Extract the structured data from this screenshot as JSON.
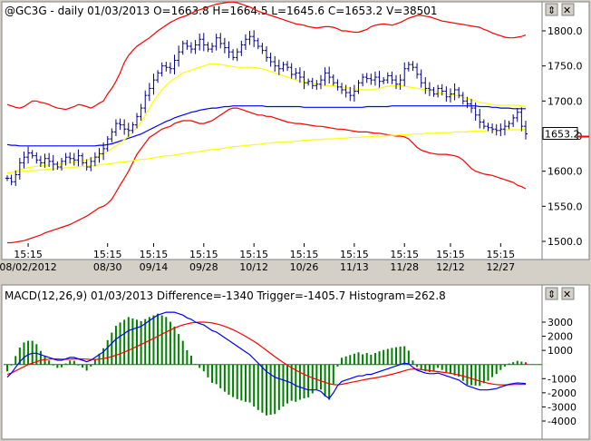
{
  "top_panel": {
    "title": "@GC3G - daily 01/03/2013 O=1663.8 H=1664.5 L=1645.6 C=1653.2 V=38501",
    "last_price": "1653.2",
    "buttons": {
      "restore": "⇕",
      "close": "✕"
    }
  },
  "bottom_panel": {
    "title": "MACD(12,26,9) 01/03/2013 Difference=-1340 Trigger=-1405.7 Histogram=262.8",
    "buttons": {
      "restore": "⇕",
      "close": "✕"
    }
  },
  "colors": {
    "background": "#ffffff",
    "price_bars": "#000080",
    "bollinger": "#ff0000",
    "ma_fast": "#ffff00",
    "ma_blue": "#0000ff",
    "ma_slow": "#ffff00",
    "macd_diff": "#0000ff",
    "macd_trigger": "#ff0000",
    "hist_pos": "#008000",
    "hist_last": "#ff0000"
  },
  "chart_data": [
    {
      "type": "line",
      "title": "@GC3G - daily 01/03/2013 O=1663.8 H=1664.5 L=1645.6 C=1653.2 V=38501",
      "y_ticks": [
        "1800.0",
        "1750.0",
        "1700.0",
        "1650.0",
        "1600.0",
        "1550.0",
        "1500.0"
      ],
      "ylim": [
        1480,
        1855
      ],
      "time_labels": [
        {
          "time": "15:15",
          "date": "08/02/2012"
        },
        {
          "time": "15:15",
          "date": "08/30"
        },
        {
          "time": "15:15",
          "date": "09/14"
        },
        {
          "time": "15:15",
          "date": "09/28"
        },
        {
          "time": "15:15",
          "date": "10/12"
        },
        {
          "time": "15:15",
          "date": "10/26"
        },
        {
          "time": "15:15",
          "date": "11/13"
        },
        {
          "time": "15:15",
          "date": "11/28"
        },
        {
          "time": "15:15",
          "date": "12/12"
        },
        {
          "time": "15:15",
          "date": "12/27"
        }
      ],
      "time_label_index": [
        5,
        24,
        35,
        47,
        59,
        71,
        83,
        95,
        106,
        118
      ],
      "close": [
        1590,
        1585,
        1595,
        1612,
        1620,
        1626,
        1622,
        1616,
        1612,
        1618,
        1614,
        1610,
        1606,
        1614,
        1620,
        1618,
        1616,
        1622,
        1612,
        1606,
        1614,
        1620,
        1625,
        1632,
        1646,
        1656,
        1668,
        1666,
        1660,
        1658,
        1666,
        1678,
        1690,
        1708,
        1718,
        1730,
        1740,
        1750,
        1748,
        1746,
        1758,
        1770,
        1782,
        1778,
        1774,
        1780,
        1788,
        1780,
        1774,
        1778,
        1790,
        1782,
        1776,
        1770,
        1762,
        1770,
        1780,
        1788,
        1792,
        1786,
        1778,
        1772,
        1762,
        1756,
        1750,
        1746,
        1752,
        1748,
        1738,
        1740,
        1734,
        1726,
        1728,
        1722,
        1724,
        1730,
        1740,
        1734,
        1726,
        1720,
        1716,
        1712,
        1708,
        1714,
        1726,
        1734,
        1732,
        1730,
        1734,
        1728,
        1730,
        1736,
        1730,
        1724,
        1730,
        1746,
        1752,
        1748,
        1738,
        1726,
        1718,
        1716,
        1710,
        1718,
        1714,
        1706,
        1710,
        1716,
        1708,
        1700,
        1696,
        1690,
        1680,
        1670,
        1664,
        1662,
        1660,
        1658,
        1660,
        1664,
        1668,
        1676,
        1684,
        1664,
        1653.2
      ],
      "bb_upper": [
        1695,
        1693,
        1691,
        1690,
        1692,
        1696,
        1700,
        1700,
        1698,
        1697,
        1695,
        1692,
        1690,
        1689,
        1688,
        1690,
        1692,
        1695,
        1694,
        1692,
        1690,
        1693,
        1697,
        1700,
        1710,
        1718,
        1728,
        1740,
        1755,
        1765,
        1772,
        1778,
        1782,
        1786,
        1790,
        1795,
        1800,
        1804,
        1808,
        1812,
        1815,
        1818,
        1820,
        1822,
        1825,
        1828,
        1830,
        1832,
        1834,
        1836,
        1838,
        1839,
        1840,
        1841,
        1841,
        1840,
        1838,
        1836,
        1834,
        1831,
        1828,
        1826,
        1824,
        1822,
        1820,
        1818,
        1816,
        1814,
        1812,
        1810,
        1809,
        1808,
        1806,
        1805,
        1804,
        1805,
        1806,
        1806,
        1805,
        1803,
        1800,
        1800,
        1799,
        1798,
        1798,
        1800,
        1802,
        1806,
        1808,
        1809,
        1810,
        1809,
        1808,
        1810,
        1812,
        1815,
        1818,
        1820,
        1822,
        1822,
        1821,
        1820,
        1818,
        1816,
        1814,
        1813,
        1812,
        1811,
        1810,
        1809,
        1808,
        1807,
        1806,
        1805,
        1802,
        1800,
        1797,
        1795,
        1793,
        1791,
        1790,
        1790,
        1791,
        1792,
        1794
      ],
      "bb_lower": [
        1498,
        1498,
        1499,
        1500,
        1501,
        1503,
        1505,
        1507,
        1509,
        1512,
        1514,
        1516,
        1518,
        1520,
        1522,
        1524,
        1527,
        1530,
        1533,
        1536,
        1540,
        1544,
        1548,
        1550,
        1554,
        1560,
        1570,
        1580,
        1590,
        1600,
        1612,
        1624,
        1632,
        1640,
        1648,
        1652,
        1656,
        1660,
        1662,
        1664,
        1668,
        1670,
        1672,
        1672,
        1672,
        1670,
        1668,
        1668,
        1670,
        1672,
        1676,
        1680,
        1684,
        1688,
        1690,
        1690,
        1688,
        1686,
        1684,
        1682,
        1680,
        1680,
        1678,
        1678,
        1676,
        1674,
        1672,
        1670,
        1669,
        1668,
        1668,
        1667,
        1666,
        1665,
        1664,
        1664,
        1663,
        1662,
        1661,
        1660,
        1660,
        1659,
        1658,
        1657,
        1656,
        1656,
        1656,
        1655,
        1654,
        1654,
        1653,
        1652,
        1651,
        1650,
        1650,
        1649,
        1646,
        1640,
        1634,
        1630,
        1628,
        1626,
        1625,
        1624,
        1624,
        1624,
        1623,
        1622,
        1620,
        1616,
        1610,
        1604,
        1600,
        1598,
        1596,
        1595,
        1594,
        1592,
        1590,
        1588,
        1586,
        1584,
        1580,
        1578,
        1575
      ],
      "ma_fast": [
        1597,
        1598,
        1600,
        1602,
        1604,
        1605,
        1606,
        1607,
        1608,
        1608,
        1609,
        1609,
        1610,
        1610,
        1611,
        1612,
        1613,
        1614,
        1615,
        1616,
        1618,
        1620,
        1622,
        1625,
        1628,
        1632,
        1636,
        1640,
        1645,
        1650,
        1656,
        1662,
        1670,
        1680,
        1690,
        1700,
        1708,
        1716,
        1722,
        1728,
        1732,
        1736,
        1740,
        1742,
        1744,
        1746,
        1748,
        1750,
        1752,
        1753,
        1753,
        1752,
        1751,
        1750,
        1749,
        1748,
        1748,
        1748,
        1748,
        1748,
        1747,
        1746,
        1744,
        1742,
        1740,
        1738,
        1736,
        1734,
        1732,
        1730,
        1728,
        1727,
        1726,
        1725,
        1724,
        1723,
        1722,
        1722,
        1722,
        1721,
        1720,
        1719,
        1718,
        1717,
        1716,
        1716,
        1716,
        1716,
        1717,
        1718,
        1720,
        1721,
        1722,
        1722,
        1722,
        1721,
        1720,
        1719,
        1718,
        1717,
        1716,
        1715,
        1714,
        1712,
        1711,
        1710,
        1709,
        1708,
        1707,
        1705,
        1704,
        1702,
        1700,
        1698,
        1697,
        1696,
        1695,
        1694,
        1694,
        1694,
        1694,
        1694,
        1694,
        1693,
        1692
      ],
      "ma_blue": [
        1638,
        1637,
        1637,
        1636,
        1636,
        1636,
        1636,
        1636,
        1636,
        1636,
        1636,
        1636,
        1636,
        1636,
        1636,
        1636,
        1636,
        1636,
        1636,
        1636,
        1636,
        1636,
        1637,
        1637,
        1638,
        1639,
        1641,
        1643,
        1645,
        1647,
        1649,
        1651,
        1653,
        1656,
        1659,
        1662,
        1665,
        1668,
        1671,
        1673,
        1676,
        1678,
        1680,
        1682,
        1684,
        1685,
        1687,
        1688,
        1689,
        1690,
        1690,
        1691,
        1692,
        1692,
        1693,
        1693,
        1693,
        1693,
        1693,
        1693,
        1693,
        1693,
        1692,
        1692,
        1692,
        1692,
        1692,
        1692,
        1692,
        1692,
        1692,
        1691,
        1691,
        1691,
        1691,
        1691,
        1691,
        1691,
        1691,
        1691,
        1691,
        1691,
        1691,
        1691,
        1691,
        1691,
        1692,
        1692,
        1692,
        1692,
        1692,
        1692,
        1693,
        1693,
        1693,
        1693,
        1693,
        1693,
        1693,
        1693,
        1693,
        1693,
        1693,
        1693,
        1693,
        1693,
        1693,
        1693,
        1693,
        1693,
        1693,
        1693,
        1693,
        1692,
        1692,
        1692,
        1691,
        1691,
        1690,
        1690,
        1690,
        1689,
        1689,
        1689,
        1689
      ],
      "ma_slow": [
        1598,
        1598,
        1599,
        1599,
        1600,
        1600,
        1601,
        1601,
        1602,
        1602,
        1603,
        1603,
        1604,
        1604,
        1605,
        1605,
        1606,
        1606,
        1607,
        1607,
        1608,
        1608,
        1609,
        1610,
        1610,
        1611,
        1612,
        1613,
        1613,
        1614,
        1615,
        1616,
        1617,
        1617,
        1618,
        1619,
        1620,
        1621,
        1622,
        1622,
        1623,
        1624,
        1625,
        1626,
        1627,
        1627,
        1628,
        1629,
        1630,
        1631,
        1631,
        1632,
        1633,
        1634,
        1635,
        1635,
        1636,
        1637,
        1637,
        1638,
        1638,
        1639,
        1640,
        1640,
        1641,
        1641,
        1642,
        1642,
        1642,
        1643,
        1643,
        1644,
        1644,
        1645,
        1645,
        1645,
        1646,
        1646,
        1646,
        1647,
        1647,
        1647,
        1648,
        1648,
        1648,
        1649,
        1649,
        1649,
        1650,
        1650,
        1650,
        1651,
        1651,
        1651,
        1652,
        1652,
        1652,
        1653,
        1653,
        1653,
        1654,
        1654,
        1654,
        1655,
        1655,
        1655,
        1655,
        1656,
        1656,
        1656,
        1656,
        1657,
        1657,
        1657,
        1657,
        1658,
        1658,
        1658,
        1658,
        1659,
        1659,
        1659,
        1659,
        1659,
        1660
      ]
    },
    {
      "type": "bar",
      "title": "MACD(12,26,9) 01/03/2013 Difference=-1340 Trigger=-1405.7 Histogram=262.8",
      "y_ticks": [
        "3000",
        "2000",
        "1000",
        "-1000",
        "-2000",
        "-3000",
        "-4000"
      ],
      "ylim": [
        -4300,
        3700
      ],
      "difference": [
        -900,
        -600,
        -200,
        200,
        500,
        700,
        800,
        800,
        700,
        600,
        500,
        400,
        300,
        300,
        400,
        500,
        500,
        400,
        300,
        200,
        300,
        500,
        700,
        900,
        1200,
        1500,
        1800,
        2000,
        2200,
        2400,
        2500,
        2600,
        2700,
        2900,
        3100,
        3300,
        3500,
        3600,
        3700,
        3700,
        3700,
        3600,
        3500,
        3300,
        3200,
        3000,
        2900,
        2800,
        2600,
        2400,
        2300,
        2100,
        1900,
        1700,
        1500,
        1300,
        1100,
        900,
        700,
        400,
        100,
        -200,
        -500,
        -700,
        -900,
        -1000,
        -1100,
        -1200,
        -1300,
        -1500,
        -1600,
        -1700,
        -1800,
        -1800,
        -1800,
        -1900,
        -2200,
        -2400,
        -2000,
        -1500,
        -1200,
        -1100,
        -1000,
        -900,
        -800,
        -800,
        -700,
        -700,
        -600,
        -500,
        -400,
        -300,
        -200,
        -100,
        0,
        100,
        50,
        -200,
        -400,
        -500,
        -600,
        -650,
        -650,
        -600,
        -700,
        -800,
        -900,
        -1000,
        -1100,
        -1300,
        -1500,
        -1600,
        -1700,
        -1800,
        -1800,
        -1800,
        -1750,
        -1700,
        -1600,
        -1500,
        -1400,
        -1350,
        -1300,
        -1320,
        -1340
      ],
      "trigger": [
        -700,
        -600,
        -450,
        -300,
        -150,
        0,
        100,
        200,
        300,
        350,
        380,
        400,
        400,
        380,
        370,
        380,
        390,
        400,
        390,
        380,
        360,
        360,
        380,
        420,
        480,
        560,
        660,
        760,
        880,
        1000,
        1140,
        1280,
        1420,
        1560,
        1700,
        1850,
        2000,
        2150,
        2300,
        2440,
        2580,
        2700,
        2800,
        2880,
        2940,
        2980,
        3000,
        3000,
        2980,
        2940,
        2880,
        2800,
        2700,
        2590,
        2460,
        2320,
        2160,
        2000,
        1820,
        1640,
        1440,
        1220,
        1000,
        780,
        560,
        340,
        140,
        -50,
        -230,
        -400,
        -560,
        -700,
        -830,
        -950,
        -1060,
        -1160,
        -1260,
        -1360,
        -1420,
        -1440,
        -1400,
        -1340,
        -1280,
        -1220,
        -1160,
        -1100,
        -1040,
        -990,
        -940,
        -890,
        -830,
        -760,
        -690,
        -610,
        -530,
        -440,
        -360,
        -320,
        -330,
        -360,
        -400,
        -430,
        -470,
        -500,
        -540,
        -580,
        -620,
        -680,
        -740,
        -820,
        -900,
        -990,
        -1080,
        -1170,
        -1250,
        -1320,
        -1380,
        -1420,
        -1440,
        -1440,
        -1430,
        -1420,
        -1410,
        -1406,
        -1405.7
      ]
    }
  ]
}
